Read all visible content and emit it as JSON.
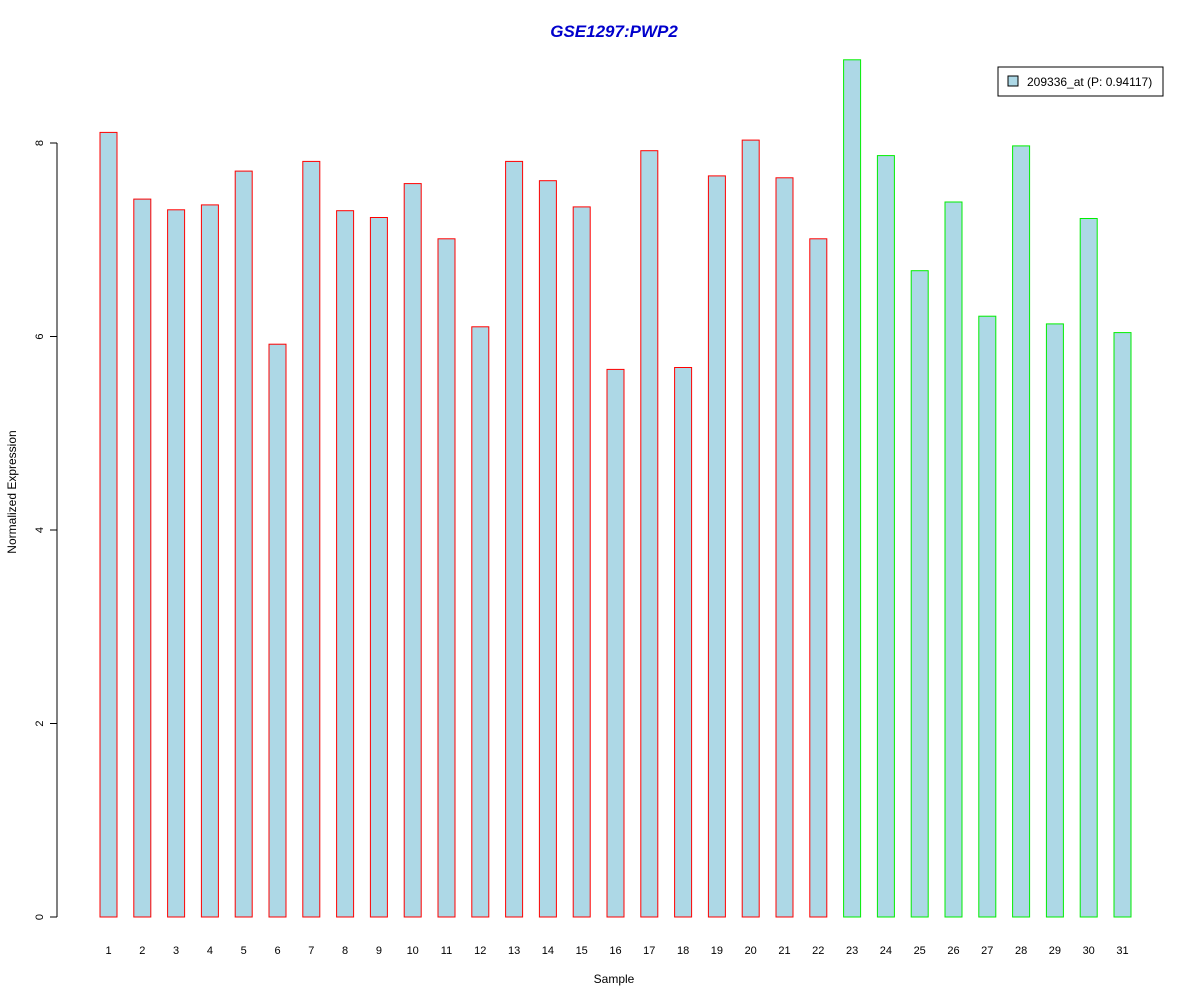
{
  "chart_data": {
    "type": "bar",
    "title": "GSE1297:PWP2",
    "title_color": "#0000cc",
    "xlabel": "Sample",
    "ylabel": "Normalized Expression",
    "ylim": [
      0,
      8.9
    ],
    "yticks": [
      0,
      2,
      4,
      6,
      8
    ],
    "grid": false,
    "legend_position": "top-right",
    "bar_fill": "#add8e6",
    "series": [
      {
        "name": "209336_at (P: 0.94117)",
        "categories": [
          "1",
          "2",
          "3",
          "4",
          "5",
          "6",
          "7",
          "8",
          "9",
          "10",
          "11",
          "12",
          "13",
          "14",
          "15",
          "16",
          "17",
          "18",
          "19",
          "20",
          "21",
          "22",
          "23",
          "24",
          "25",
          "26",
          "27",
          "28",
          "29",
          "30",
          "31"
        ],
        "values": [
          8.11,
          7.42,
          7.31,
          7.36,
          7.71,
          5.92,
          7.81,
          7.3,
          7.23,
          7.58,
          7.01,
          6.1,
          7.81,
          7.61,
          7.34,
          5.66,
          7.92,
          5.68,
          7.66,
          8.03,
          7.64,
          7.01,
          8.86,
          7.87,
          6.68,
          7.39,
          6.21,
          7.97,
          6.13,
          7.22,
          6.04
        ],
        "groups": [
          "a",
          "a",
          "a",
          "a",
          "a",
          "a",
          "a",
          "a",
          "a",
          "a",
          "a",
          "a",
          "a",
          "a",
          "a",
          "a",
          "a",
          "a",
          "a",
          "a",
          "a",
          "a",
          "b",
          "b",
          "b",
          "b",
          "b",
          "b",
          "b",
          "b",
          "b"
        ]
      }
    ],
    "group_colors": {
      "a": "#ff0000",
      "b": "#00ee00"
    }
  }
}
